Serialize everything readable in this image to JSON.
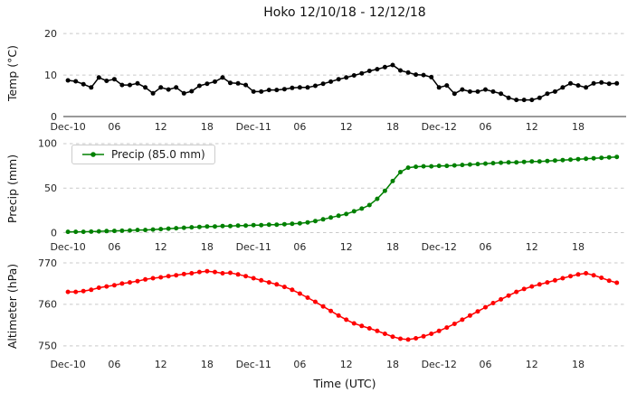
{
  "title": "Hoko 12/10/18 - 12/12/18",
  "xlabel": "Time (UTC)",
  "x_tick_labels": [
    "Dec-10",
    "06",
    "12",
    "18",
    "Dec-11",
    "06",
    "12",
    "18",
    "Dec-12",
    "06",
    "12",
    "18"
  ],
  "x_tick_hours": [
    0,
    6,
    12,
    18,
    24,
    30,
    36,
    42,
    48,
    54,
    60,
    66
  ],
  "x_hours": [
    0,
    1,
    2,
    3,
    4,
    5,
    6,
    7,
    8,
    9,
    10,
    11,
    12,
    13,
    14,
    15,
    16,
    17,
    18,
    19,
    20,
    21,
    22,
    23,
    24,
    25,
    26,
    27,
    28,
    29,
    30,
    31,
    32,
    33,
    34,
    35,
    36,
    37,
    38,
    39,
    40,
    41,
    42,
    43,
    44,
    45,
    46,
    47,
    48,
    49,
    50,
    51,
    52,
    53,
    54,
    55,
    56,
    57,
    58,
    59,
    60,
    61,
    62,
    63,
    64,
    65,
    66,
    67,
    68,
    69,
    70,
    71
  ],
  "chart_data": [
    {
      "type": "line",
      "name": "temperature",
      "ylabel": "Temp (°C)",
      "color": "#000000",
      "ylim": [
        0,
        20.9
      ],
      "yticks": [
        0,
        10,
        20
      ],
      "grid": "dashed-horizontal",
      "legend": null,
      "values": [
        8.7,
        8.5,
        7.8,
        7.0,
        9.4,
        8.6,
        9.0,
        7.6,
        7.6,
        8.0,
        7.0,
        5.6,
        7.0,
        6.5,
        7.0,
        5.6,
        6.1,
        7.4,
        7.9,
        8.4,
        9.4,
        8.1,
        8.0,
        7.6,
        6.0,
        6.0,
        6.4,
        6.4,
        6.6,
        6.9,
        7.0,
        7.0,
        7.4,
        7.9,
        8.4,
        9.0,
        9.4,
        9.9,
        10.4,
        11.0,
        11.4,
        11.9,
        12.4,
        11.1,
        10.6,
        10.1,
        10.0,
        9.5,
        7.0,
        7.5,
        5.5,
        6.5,
        6.0,
        6.0,
        6.5,
        6.0,
        5.5,
        4.5,
        4.0,
        4.0,
        4.0,
        4.5,
        5.5,
        6.0,
        7.0,
        8.0,
        7.5,
        7.0,
        8.0,
        8.2,
        7.9,
        8.0
      ]
    },
    {
      "type": "line",
      "name": "precipitation",
      "ylabel": "Precip (mm)",
      "color": "#008000",
      "ylim": [
        -4.5,
        104
      ],
      "yticks": [
        0,
        50,
        100
      ],
      "grid": "dashed-horizontal",
      "legend": "Precip (85.0 mm)",
      "legend_position": "upper left",
      "values": [
        1.0,
        1.0,
        1.0,
        1.2,
        1.5,
        1.8,
        2.0,
        2.2,
        2.5,
        3.0,
        3.0,
        3.5,
        4.0,
        4.5,
        5.0,
        5.5,
        6.0,
        6.5,
        7.0,
        7.0,
        7.5,
        7.5,
        8.0,
        8.0,
        8.5,
        8.5,
        9.0,
        9.0,
        9.5,
        10.0,
        10.5,
        11.5,
        13.0,
        15.0,
        17.0,
        19.0,
        21.0,
        24.0,
        27.0,
        31.0,
        38.0,
        47.0,
        58.0,
        68.0,
        73.0,
        74.0,
        74.5,
        74.5,
        75.0,
        75.0,
        75.5,
        76.0,
        76.5,
        77.0,
        77.5,
        78.0,
        78.5,
        79.0,
        79.0,
        79.5,
        80.0,
        80.0,
        80.5,
        81.0,
        81.5,
        82.0,
        82.5,
        83.0,
        83.5,
        84.0,
        84.5,
        85.0
      ]
    },
    {
      "type": "line",
      "name": "altimeter",
      "ylabel": "Altimeter (hPa)",
      "color": "#ff0000",
      "ylim": [
        748,
        771.3
      ],
      "yticks": [
        750,
        760,
        770
      ],
      "grid": "dashed-horizontal",
      "legend": null,
      "values": [
        763.0,
        763.0,
        763.2,
        763.5,
        764.0,
        764.3,
        764.6,
        765.0,
        765.3,
        765.6,
        766.0,
        766.3,
        766.5,
        766.8,
        767.0,
        767.3,
        767.5,
        767.8,
        768.0,
        767.8,
        767.5,
        767.6,
        767.2,
        766.8,
        766.3,
        765.8,
        765.3,
        764.8,
        764.2,
        763.5,
        762.6,
        761.6,
        760.6,
        759.5,
        758.4,
        757.3,
        756.3,
        755.4,
        754.8,
        754.2,
        753.6,
        752.9,
        752.2,
        751.7,
        751.5,
        751.8,
        752.3,
        752.9,
        753.6,
        754.4,
        755.3,
        756.3,
        757.3,
        758.3,
        759.3,
        760.3,
        761.2,
        762.1,
        763.0,
        763.7,
        764.3,
        764.8,
        765.3,
        765.8,
        766.3,
        766.8,
        767.2,
        767.5,
        767.0,
        766.4,
        765.7,
        765.2
      ]
    }
  ]
}
